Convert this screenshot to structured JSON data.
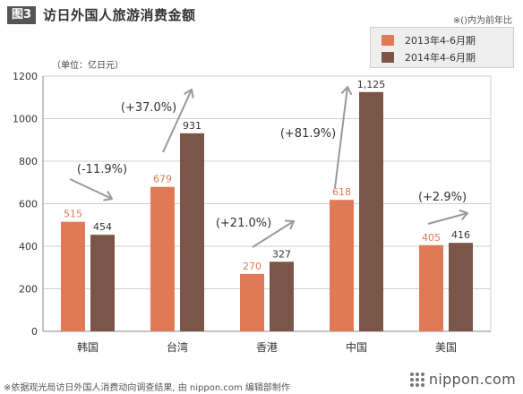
{
  "header": {
    "fig_label": "图3",
    "title": "访日外国人旅游消费金额",
    "note": "※()内为前年比"
  },
  "unit_label": "（单位：亿日元）",
  "source": "※依据观光局访日外国人消费动向调查结果, 由 nippon.com 编辑部制作",
  "logo": {
    "text": "nippon.com"
  },
  "chart_data": {
    "type": "bar",
    "categories": [
      "韩国",
      "台湾",
      "香港",
      "中国",
      "美国"
    ],
    "series": [
      {
        "name": "2013年4-6月期",
        "values": [
          515,
          679,
          270,
          618,
          405
        ],
        "labels": [
          "515",
          "679",
          "270",
          "618",
          "405"
        ],
        "color": "#E07A56"
      },
      {
        "name": "2014年4-6月期",
        "values": [
          454,
          931,
          327,
          1125,
          416
        ],
        "labels": [
          "454",
          "931",
          "327",
          "1,125",
          "416"
        ],
        "color": "#7A5548"
      }
    ],
    "annotations": [
      "(-11.9%)",
      "(+37.0%)",
      "(+21.0%)",
      "(+81.9%)",
      "(+2.9%)"
    ],
    "yticks": [
      "0",
      "200",
      "400",
      "600",
      "800",
      "1000",
      "1200"
    ],
    "ylim": [
      0,
      1200
    ],
    "grid": true,
    "legend_position": "top-right"
  }
}
